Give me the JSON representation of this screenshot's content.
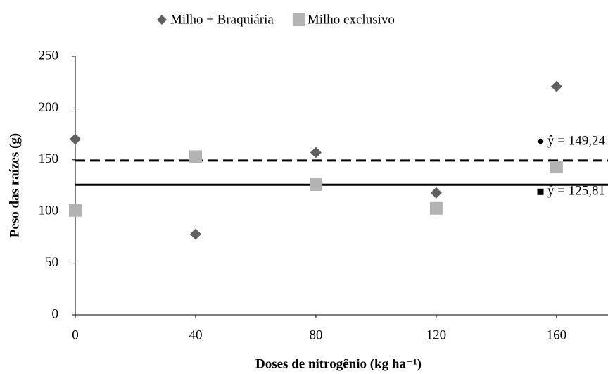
{
  "chart_data": {
    "type": "scatter",
    "x_label": "Doses de nitrogênio (kg ha⁻¹)",
    "y_label": "Peso das raízes (g)",
    "x": [
      0,
      40,
      80,
      120,
      160
    ],
    "series": [
      {
        "name": "Milho + Braquiária",
        "color": "#606060",
        "marker": "diamond",
        "values": [
          170,
          78,
          157,
          118,
          221
        ],
        "fit": {
          "value": 149.24,
          "label": "ŷ = 149,24",
          "dash": true
        }
      },
      {
        "name": "Milho exclusivo",
        "color": "#b3b3b3",
        "marker": "square",
        "values": [
          101,
          153,
          126,
          103,
          143
        ],
        "fit": {
          "value": 125.81,
          "label": "ŷ = 125,81",
          "dash": false
        }
      }
    ],
    "xlim": [
      0,
      175
    ],
    "xticks": [
      0,
      40,
      80,
      120,
      160
    ],
    "ylim": [
      0,
      250
    ],
    "yticks": [
      0,
      50,
      100,
      150,
      200,
      250
    ],
    "grid": false,
    "legend": "top"
  }
}
